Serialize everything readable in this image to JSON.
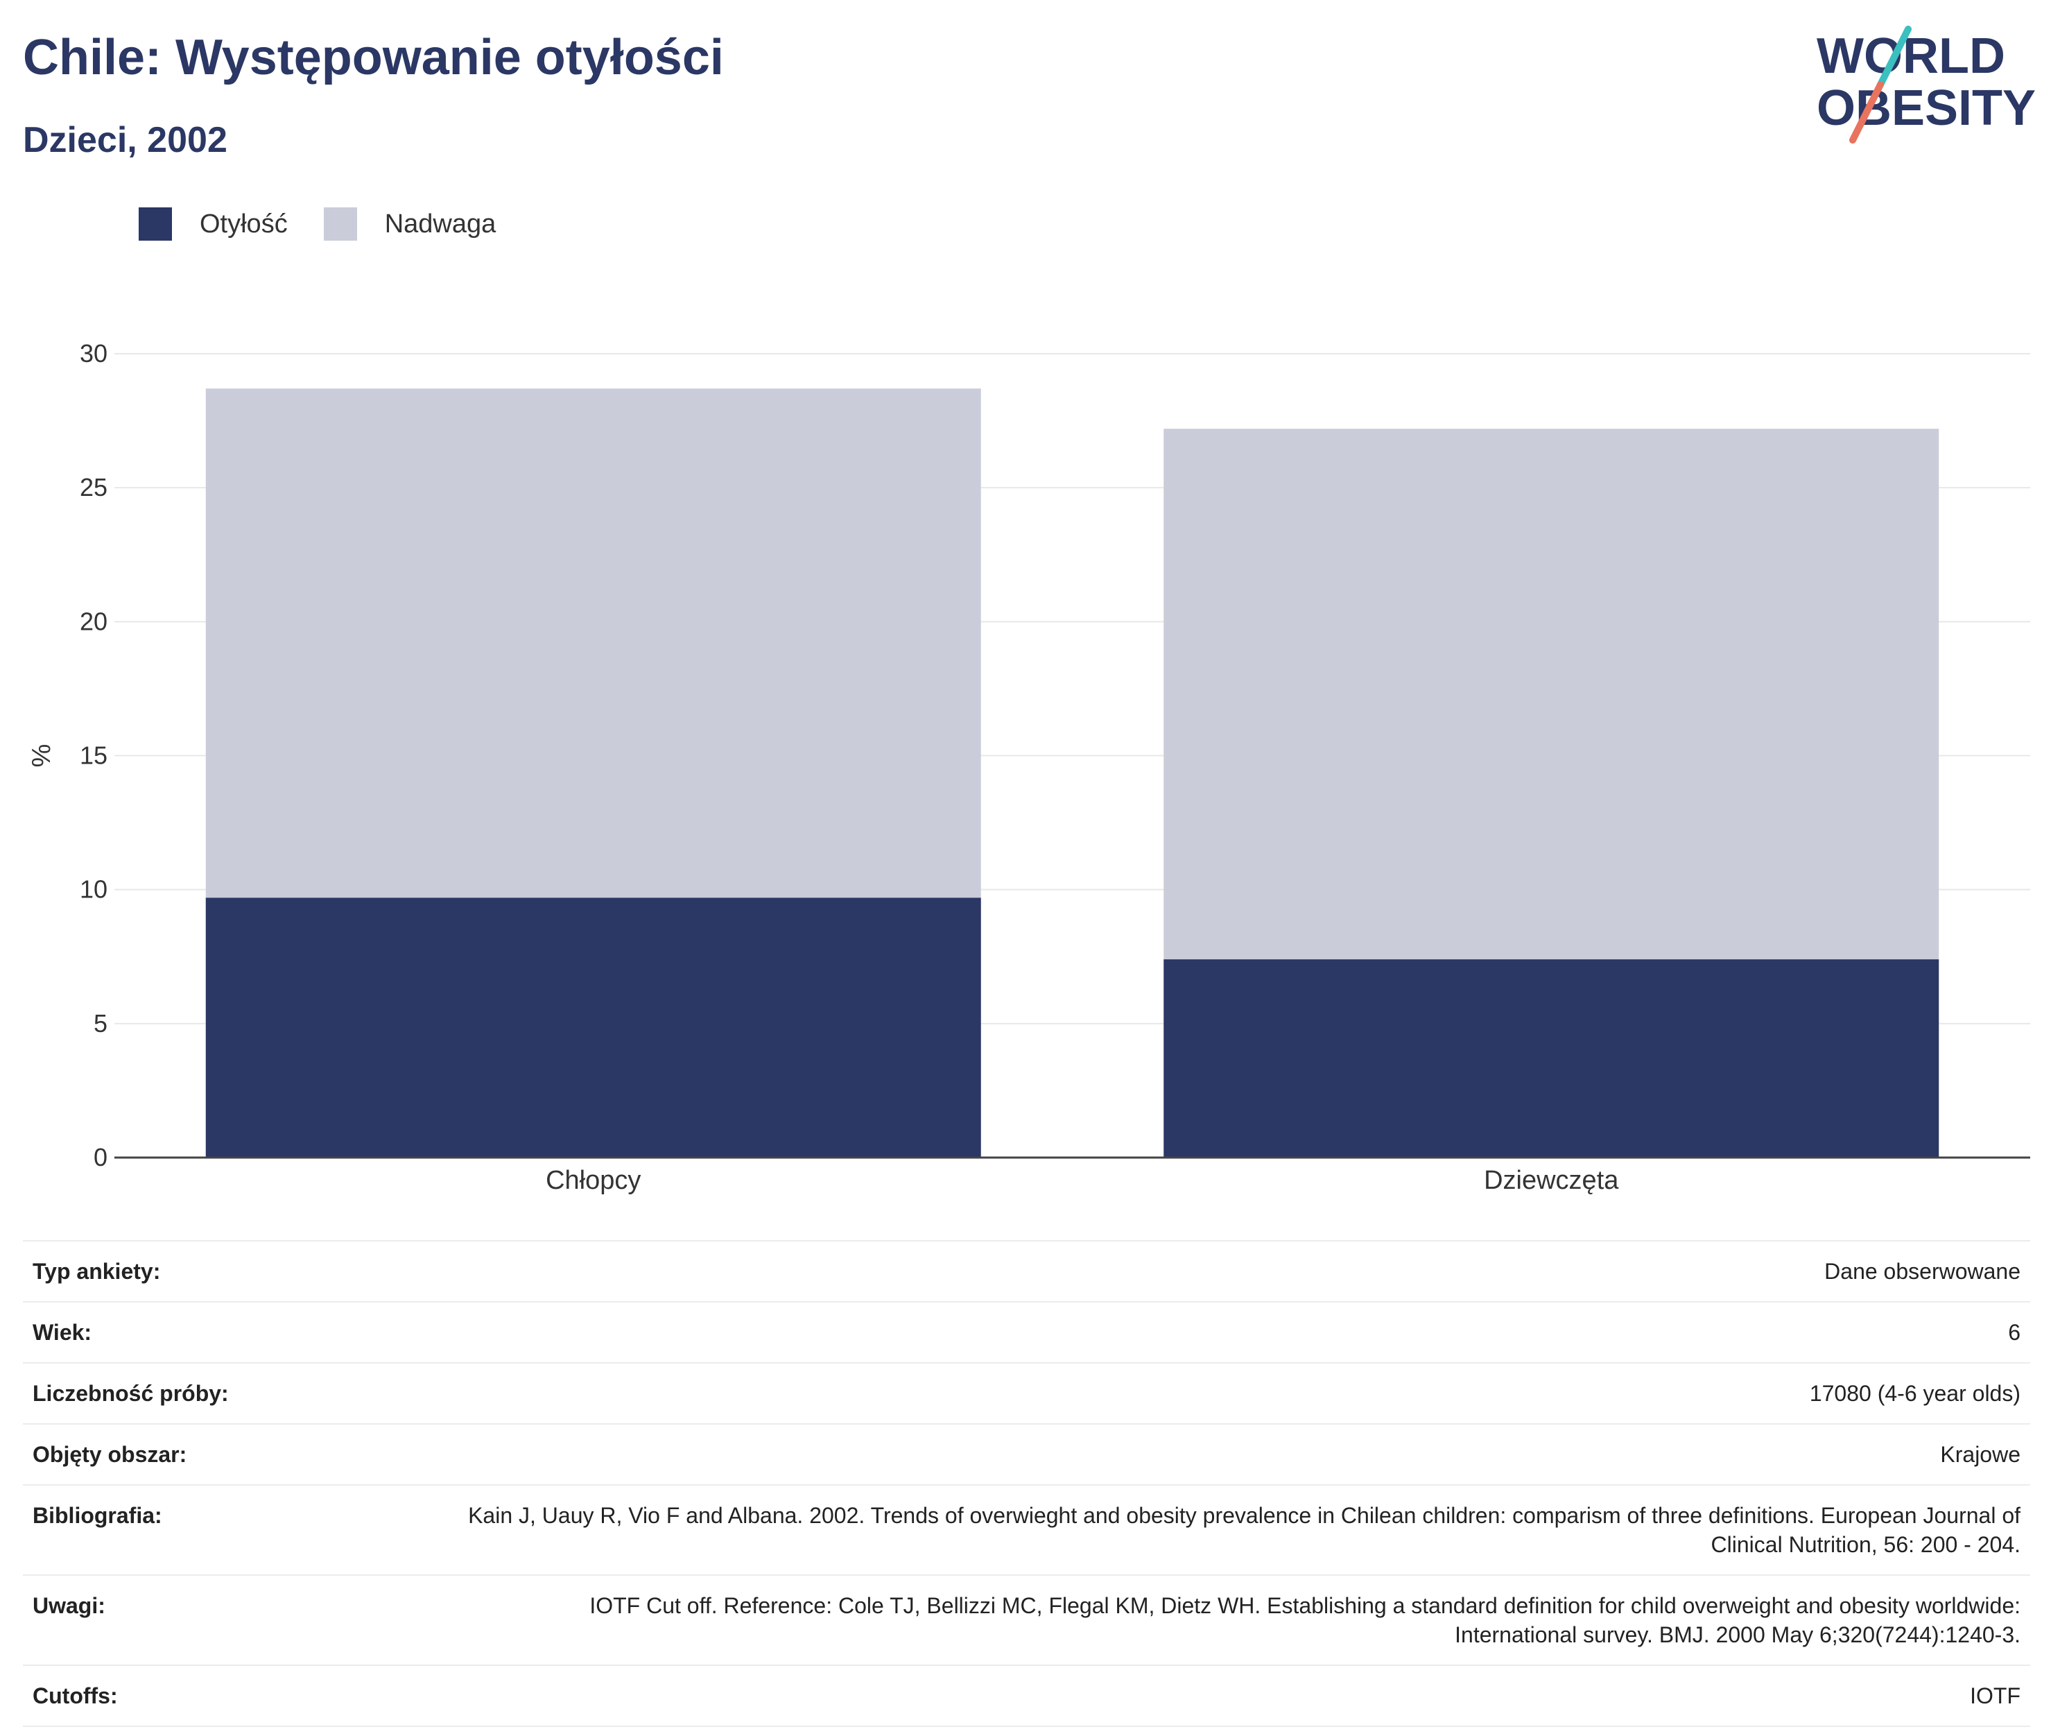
{
  "header": {
    "title": "Chile: Występowanie otyłości",
    "subtitle": "Dzieci, 2002"
  },
  "logo": {
    "line1": "WORLD",
    "line2": "OBESITY",
    "text_color": "#2b3764",
    "slash_teal": "#3bbfbf",
    "slash_coral": "#e8735f"
  },
  "chart_data": {
    "type": "bar",
    "stacked": true,
    "categories": [
      "Chłopcy",
      "Dziewczęta"
    ],
    "series": [
      {
        "name": "Otyłość",
        "values": [
          9.7,
          7.4
        ],
        "color": "#2b3764"
      },
      {
        "name": "Nadwaga",
        "values": [
          19.0,
          19.8
        ],
        "color": "#cacdd9"
      }
    ],
    "xlabel": "",
    "ylabel": "%",
    "ylim": [
      0,
      30
    ],
    "yticks": [
      "0",
      "5",
      "10",
      "15",
      "20",
      "25",
      "30"
    ],
    "grid": true,
    "legend_position": "top-left"
  },
  "details": [
    {
      "key": "Typ ankiety:",
      "value": "Dane obserwowane"
    },
    {
      "key": "Wiek:",
      "value": "6"
    },
    {
      "key": "Liczebność próby:",
      "value": "17080 (4-6 year olds)"
    },
    {
      "key": "Objęty obszar:",
      "value": "Krajowe"
    },
    {
      "key": "Bibliografia:",
      "value": "Kain J, Uauy R, Vio F and Albana. 2002. Trends of overwieght and obesity prevalence in Chilean children: comparism of three definitions. European Journal of Clinical Nutrition, 56: 200 - 204."
    },
    {
      "key": "Uwagi:",
      "value": "IOTF Cut off. Reference: Cole TJ, Bellizzi MC, Flegal KM, Dietz WH. Establishing a standard definition for child overweight and obesity worldwide: International survey. BMJ. 2000 May 6;320(7244):1240-3."
    },
    {
      "key": "Cutoffs:",
      "value": "IOTF"
    }
  ]
}
